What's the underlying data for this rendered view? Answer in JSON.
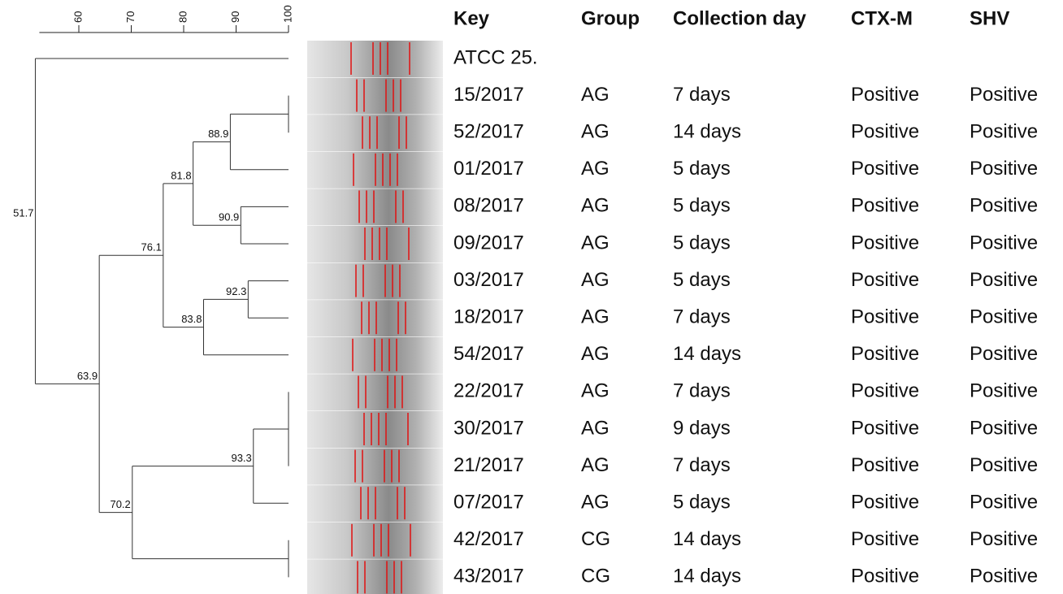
{
  "chart_data": {
    "type": "dendrogram",
    "xlim": [
      52,
      100
    ],
    "xticks": [
      60,
      70,
      80,
      90,
      100
    ],
    "header": {
      "key": "Key",
      "group": "Group",
      "day": "Collection day",
      "ctx": "CTX-M",
      "shv": "SHV"
    },
    "tree": {
      "value": 51.7,
      "children": [
        {
          "key": "ATCC 25."
        },
        {
          "value": 63.9,
          "children": [
            {
              "value": 76.1,
              "children": [
                {
                  "value": 81.8,
                  "children": [
                    {
                      "value": 88.9,
                      "children": [
                        {
                          "value": 100,
                          "children": [
                            {
                              "key": "15/2017",
                              "group": "AG",
                              "day": "7 days",
                              "ctx": "Positive",
                              "shv": "Positive"
                            },
                            {
                              "key": "52/2017",
                              "group": "AG",
                              "day": "14 days",
                              "ctx": "Positive",
                              "shv": "Positive"
                            }
                          ]
                        },
                        {
                          "key": "01/2017",
                          "group": "AG",
                          "day": "5 days",
                          "ctx": "Positive",
                          "shv": "Positive"
                        }
                      ]
                    },
                    {
                      "value": 90.9,
                      "children": [
                        {
                          "key": "08/2017",
                          "group": "AG",
                          "day": "5 days",
                          "ctx": "Positive",
                          "shv": "Positive"
                        },
                        {
                          "key": "09/2017",
                          "group": "AG",
                          "day": "5 days",
                          "ctx": "Positive",
                          "shv": "Positive"
                        }
                      ]
                    }
                  ]
                },
                {
                  "value": 83.8,
                  "children": [
                    {
                      "value": 92.3,
                      "children": [
                        {
                          "key": "03/2017",
                          "group": "AG",
                          "day": "5 days",
                          "ctx": "Positive",
                          "shv": "Positive"
                        },
                        {
                          "key": "18/2017",
                          "group": "AG",
                          "day": "7 days",
                          "ctx": "Positive",
                          "shv": "Positive"
                        }
                      ]
                    },
                    {
                      "key": "54/2017",
                      "group": "AG",
                      "day": "14 days",
                      "ctx": "Positive",
                      "shv": "Positive"
                    }
                  ]
                }
              ]
            },
            {
              "value": 70.2,
              "children": [
                {
                  "value": 93.3,
                  "children": [
                    {
                      "value": 100,
                      "children": [
                        {
                          "key": "22/2017",
                          "group": "AG",
                          "day": "7 days",
                          "ctx": "Positive",
                          "shv": "Positive"
                        },
                        {
                          "key": "30/2017",
                          "group": "AG",
                          "day": "9 days",
                          "ctx": "Positive",
                          "shv": "Positive"
                        },
                        {
                          "key": "21/2017",
                          "group": "AG",
                          "day": "7 days",
                          "ctx": "Positive",
                          "shv": "Positive"
                        }
                      ]
                    },
                    {
                      "key": "07/2017",
                      "group": "AG",
                      "day": "5 days",
                      "ctx": "Positive",
                      "shv": "Positive"
                    }
                  ]
                },
                {
                  "value": 100,
                  "children": [
                    {
                      "key": "42/2017",
                      "group": "CG",
                      "day": "14 days",
                      "ctx": "Positive",
                      "shv": "Positive"
                    },
                    {
                      "key": "43/2017",
                      "group": "CG",
                      "day": "14 days",
                      "ctx": "Positive",
                      "shv": "Positive"
                    }
                  ]
                }
              ]
            }
          ]
        }
      ]
    }
  }
}
